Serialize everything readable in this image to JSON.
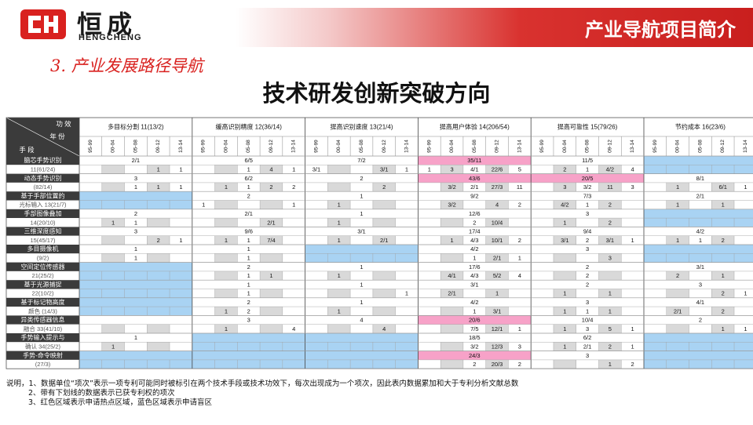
{
  "header": {
    "logo_cn": "恒成",
    "logo_en": "HENGCHENG",
    "title": "产业导航项目简介"
  },
  "section_title": "3. 产业发展路径导航",
  "main_title": "技术研发创新突破方向",
  "colors": {
    "pink": "#f7a2c8",
    "blue": "#a9d3f3",
    "gray": "#d9d9d9",
    "header_dark": "#3b3b3b",
    "accent": "#d9211f"
  },
  "table": {
    "corner": {
      "top": "功  效",
      "mid": "年    份",
      "bottom": "手    段"
    },
    "efficacies": [
      {
        "name": "多目标分割",
        "code": "11(13/2)"
      },
      {
        "name": "缓高识别精度",
        "code": "12(36/14)"
      },
      {
        "name": "提高识别速度",
        "code": "13(21/4)"
      },
      {
        "name": "提高用户体验",
        "code": "14(206/54)"
      },
      {
        "name": "提高可靠性",
        "code": "15(79/26)"
      },
      {
        "name": "节约成本",
        "code": "16(23/6)"
      }
    ],
    "year_labels": [
      "95-99",
      "00-04",
      "05-08",
      "09-12",
      "13-14"
    ],
    "rows": [
      {
        "label1": "脑芯手势识别",
        "label2": "11(61/24)",
        "totals": [
          "2/1",
          "6/5",
          "7/2",
          "35/11",
          "11/5",
          ""
        ],
        "cells": [
          [
            "",
            "",
            "",
            "1",
            "1"
          ],
          [
            "",
            "",
            "1",
            "4",
            "1"
          ],
          [
            "3/1",
            "",
            "",
            "3/1",
            "1"
          ],
          [
            "1",
            "3",
            "4/1",
            "22/6",
            "5"
          ],
          [
            "",
            "2",
            "1",
            "4/2",
            "4"
          ],
          [
            "",
            "",
            "",
            "",
            ""
          ]
        ],
        "colors": [
          "",
          "",
          "",
          "pink",
          "",
          "blue"
        ]
      },
      {
        "label1": "动态手势识别",
        "label2": "(82/14)",
        "totals": [
          "3",
          "6/2",
          "2",
          "43/6",
          "20/5",
          "8/1"
        ],
        "cells": [
          [
            "",
            "",
            "1",
            "1",
            "1"
          ],
          [
            "",
            "1",
            "1",
            "2",
            "2"
          ],
          [
            "",
            "",
            "",
            "2",
            ""
          ],
          [
            "",
            "3/2",
            "2/1",
            "27/3",
            "11"
          ],
          [
            "",
            "3",
            "3/2",
            "11",
            "3"
          ],
          [
            "",
            "1",
            "",
            "6/1",
            "1"
          ]
        ],
        "colors": [
          "",
          "",
          "",
          "pink",
          "pink",
          ""
        ]
      },
      {
        "label1": "基于手部位置的",
        "label2": "光标输入 13(21/7)",
        "totals": [
          "",
          "2",
          "1",
          "9/2",
          "7/3",
          "2/1"
        ],
        "cells": [
          [
            "",
            "",
            "",
            "",
            ""
          ],
          [
            "1",
            "",
            "",
            "",
            "1"
          ],
          [
            "",
            "1",
            "",
            "",
            ""
          ],
          [
            "",
            "3/2",
            "",
            "4",
            "2"
          ],
          [
            "",
            "4/2",
            "1",
            "2",
            ""
          ],
          [
            "",
            "1",
            "",
            "1",
            ""
          ]
        ],
        "colors": [
          "blue",
          "",
          "",
          "",
          "",
          ""
        ]
      },
      {
        "label1": "手部图像叠加",
        "label2": "14(20/10)",
        "totals": [
          "2",
          "2/1",
          "1",
          "12/6",
          "3",
          ""
        ],
        "cells": [
          [
            "",
            "1",
            "1",
            "",
            ""
          ],
          [
            "",
            "",
            "",
            "2/1",
            ""
          ],
          [
            "",
            "1",
            "",
            "",
            ""
          ],
          [
            "",
            "",
            "2",
            "10/4",
            ""
          ],
          [
            "",
            "1",
            "",
            "2",
            ""
          ],
          [
            "",
            "",
            "",
            "",
            ""
          ]
        ],
        "colors": [
          "",
          "",
          "",
          "",
          "",
          "blue"
        ]
      },
      {
        "label1": "三维深度感知",
        "label2": "15(45/17)",
        "totals": [
          "3",
          "9/6",
          "3/1",
          "17/4",
          "9/4",
          "4/2"
        ],
        "cells": [
          [
            "",
            "",
            "",
            "2",
            "1"
          ],
          [
            "",
            "1",
            "1",
            "7/4",
            ""
          ],
          [
            "",
            "1",
            "",
            "2/1",
            ""
          ],
          [
            "",
            "1",
            "4/3",
            "10/1",
            "2"
          ],
          [
            "",
            "3/1",
            "2",
            "3/1",
            "1"
          ],
          [
            "",
            "1",
            "1",
            "2",
            ""
          ]
        ],
        "colors": [
          "",
          "",
          "",
          "",
          "",
          ""
        ]
      },
      {
        "label1": "多目摄像机",
        "label2": "(9/2)",
        "totals": [
          "1",
          "1",
          "",
          "4/2",
          "3",
          ""
        ],
        "cells": [
          [
            "",
            "",
            "1",
            "",
            ""
          ],
          [
            "",
            "",
            "1",
            "",
            ""
          ],
          [
            "",
            "",
            "",
            "",
            ""
          ],
          [
            "",
            "",
            "1",
            "2/1",
            "1"
          ],
          [
            "",
            "",
            "",
            "3",
            ""
          ],
          [
            "",
            "",
            "",
            "",
            ""
          ]
        ],
        "colors": [
          "",
          "",
          "blue",
          "",
          "",
          "blue"
        ]
      },
      {
        "label1": "空间定位传感器",
        "label2": "21(25/2)",
        "totals": [
          "",
          "2",
          "1",
          "17/6",
          "2",
          "3/1"
        ],
        "cells": [
          [
            "",
            "",
            "",
            "",
            ""
          ],
          [
            "",
            "",
            "1",
            "1",
            ""
          ],
          [
            "",
            "1",
            "",
            "",
            ""
          ],
          [
            "",
            "4/1",
            "4/3",
            "5/2",
            "4"
          ],
          [
            "",
            "",
            "2",
            "",
            ""
          ],
          [
            "",
            "2",
            "",
            "1",
            ""
          ]
        ],
        "colors": [
          "blue",
          "",
          "",
          "",
          "",
          ""
        ]
      },
      {
        "label1": "基于光源捕捉",
        "label2": "22(10/2)",
        "totals": [
          "",
          "1",
          "1",
          "3/1",
          "2",
          "3"
        ],
        "cells": [
          [
            "",
            "",
            "",
            "",
            ""
          ],
          [
            "",
            "",
            "1",
            "",
            ""
          ],
          [
            "",
            "",
            "",
            "",
            "1"
          ],
          [
            "",
            "2/1",
            "",
            "1",
            ""
          ],
          [
            "",
            "1",
            "",
            "1",
            ""
          ],
          [
            "",
            "",
            "",
            "2",
            "1"
          ]
        ],
        "colors": [
          "blue",
          "",
          "",
          "",
          "",
          ""
        ]
      },
      {
        "label1": "基于标记物高度",
        "label2": "颜色 (14/3)",
        "totals": [
          "",
          "2",
          "1",
          "4/2",
          "3",
          "4/1"
        ],
        "cells": [
          [
            "",
            "",
            "",
            "",
            ""
          ],
          [
            "",
            "1",
            "2",
            "",
            ""
          ],
          [
            "",
            "1",
            "",
            "",
            ""
          ],
          [
            "",
            "",
            "1",
            "3/1",
            ""
          ],
          [
            "",
            "1",
            "1",
            "1",
            ""
          ],
          [
            "",
            "2/1",
            "",
            "2",
            ""
          ]
        ],
        "colors": [
          "blue",
          "",
          "",
          "",
          "",
          ""
        ]
      },
      {
        "label1": "异类传感器信息",
        "label2": "融合 33(41/10)",
        "totals": [
          "",
          "3",
          "4",
          "20/6",
          "10/4",
          "2"
        ],
        "cells": [
          [
            "",
            "",
            "",
            "",
            ""
          ],
          [
            "",
            "1",
            "",
            "",
            "4"
          ],
          [
            "",
            "",
            "",
            "4",
            ""
          ],
          [
            "",
            "",
            "7/5",
            "12/1",
            "1"
          ],
          [
            "",
            "1",
            "3",
            "5",
            "1"
          ],
          [
            "",
            "",
            "",
            "1",
            "1"
          ]
        ],
        "colors": [
          "",
          "",
          "",
          "pink",
          "",
          ""
        ]
      },
      {
        "label1": "手势输入提示与",
        "label2": "确认 34(25/2)",
        "totals": [
          "1",
          "",
          "",
          "18/5",
          "6/2",
          ""
        ],
        "cells": [
          [
            "",
            "1",
            "",
            "",
            ""
          ],
          [
            "",
            "",
            "",
            "",
            ""
          ],
          [
            "",
            "",
            "",
            "",
            ""
          ],
          [
            "",
            "",
            "3/2",
            "12/3",
            "3"
          ],
          [
            "",
            "1",
            "2/1",
            "2",
            "1"
          ],
          [
            "",
            "",
            "",
            "",
            ""
          ]
        ],
        "colors": [
          "",
          "blue",
          "blue",
          "",
          "",
          "blue"
        ]
      },
      {
        "label1": "手势-命令映射",
        "label2": "(27/3)",
        "totals": [
          "",
          "",
          "",
          "24/3",
          "3",
          ""
        ],
        "cells": [
          [
            "",
            "",
            "",
            "",
            ""
          ],
          [
            "",
            "",
            "",
            "",
            ""
          ],
          [
            "",
            "",
            "",
            "",
            ""
          ],
          [
            "",
            "",
            "2",
            "20/3",
            "2"
          ],
          [
            "",
            "",
            "",
            "1",
            "2"
          ],
          [
            "",
            "",
            "",
            "",
            ""
          ]
        ],
        "colors": [
          "blue",
          "blue",
          "blue",
          "pink",
          "",
          "blue"
        ]
      }
    ]
  },
  "notes": [
    "说明，1、数据单位“项次”表示一项专利可能同时被标引在两个技术手段或技术功效下，每次出现成为一个项次，因此表内数据累加和大于专利分析文献总数",
    "2、带有下划线的数据表示已获专利权的项次",
    "3、红色区域表示申请热点区域，蓝色区域表示申请盲区"
  ]
}
